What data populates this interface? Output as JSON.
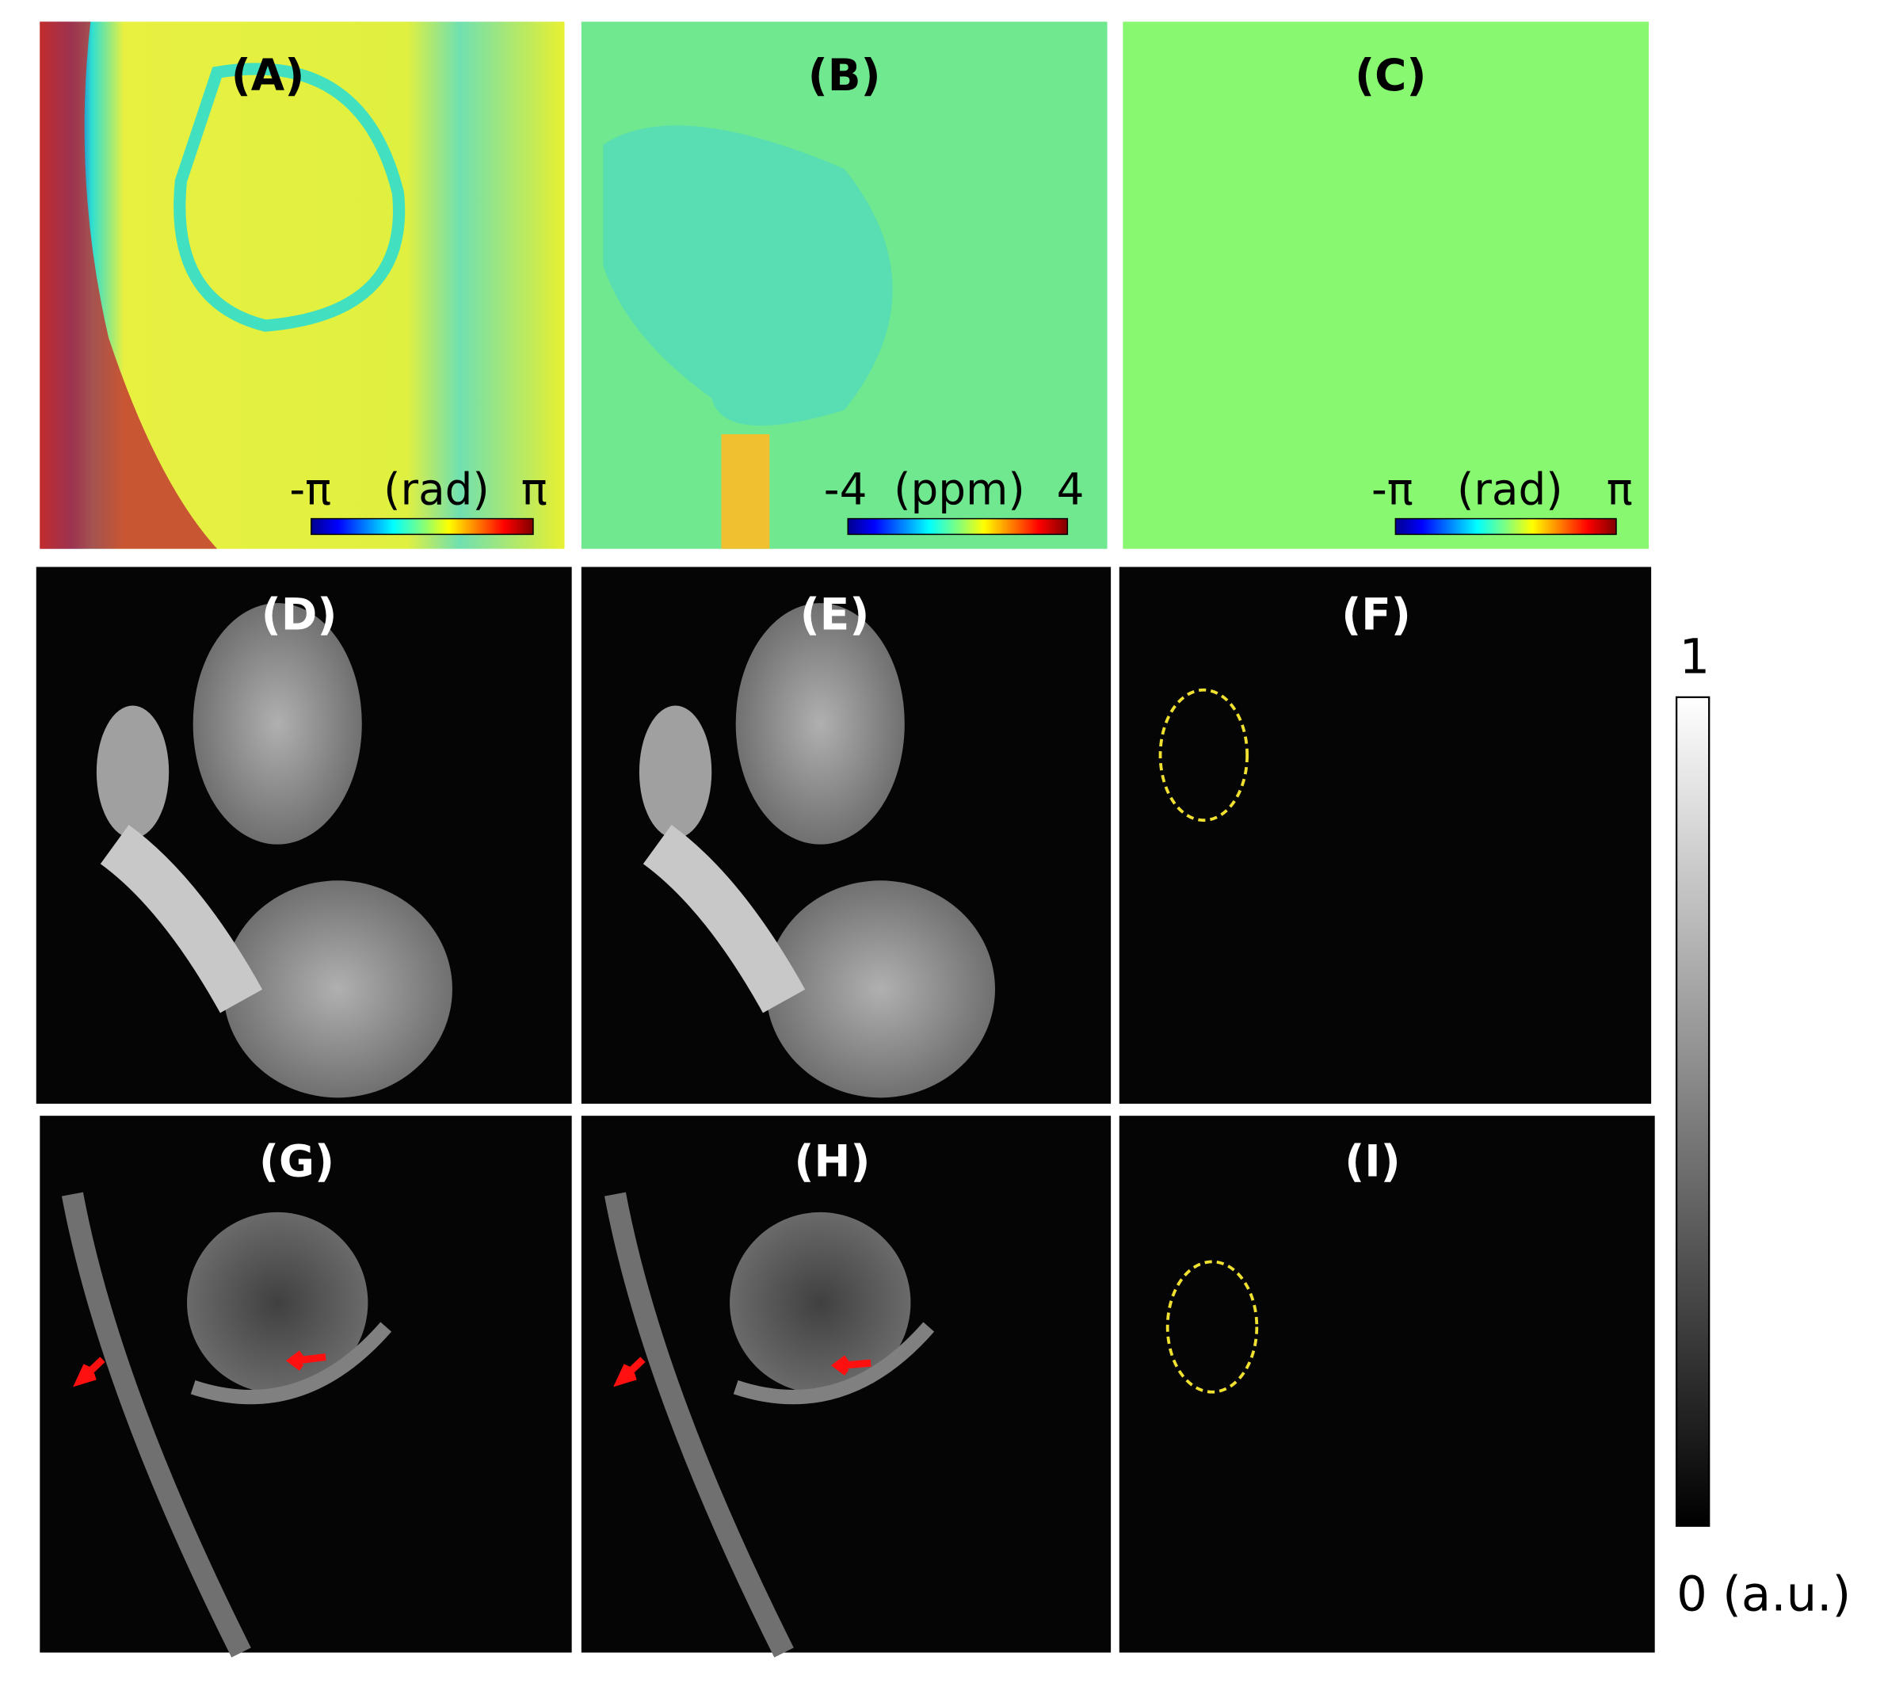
{
  "panels": [
    {
      "label": "(A)"
    },
    {
      "label": "(B)"
    },
    {
      "label": "(C)"
    },
    {
      "label": "(D)"
    },
    {
      "label": "(E)"
    },
    {
      "label": "(F)"
    },
    {
      "label": "(G)"
    },
    {
      "label": "(H)"
    },
    {
      "label": "(I)"
    }
  ],
  "colorbars": [
    {
      "min": "-π",
      "unit": "(rad)",
      "max": "π"
    },
    {
      "min": "-4",
      "unit": "(ppm)",
      "max": "4"
    },
    {
      "min": "-π",
      "unit": "(rad)",
      "max": "π"
    }
  ],
  "grayscale_colorbar": {
    "max": "1",
    "min": "0 (a.u.)"
  }
}
